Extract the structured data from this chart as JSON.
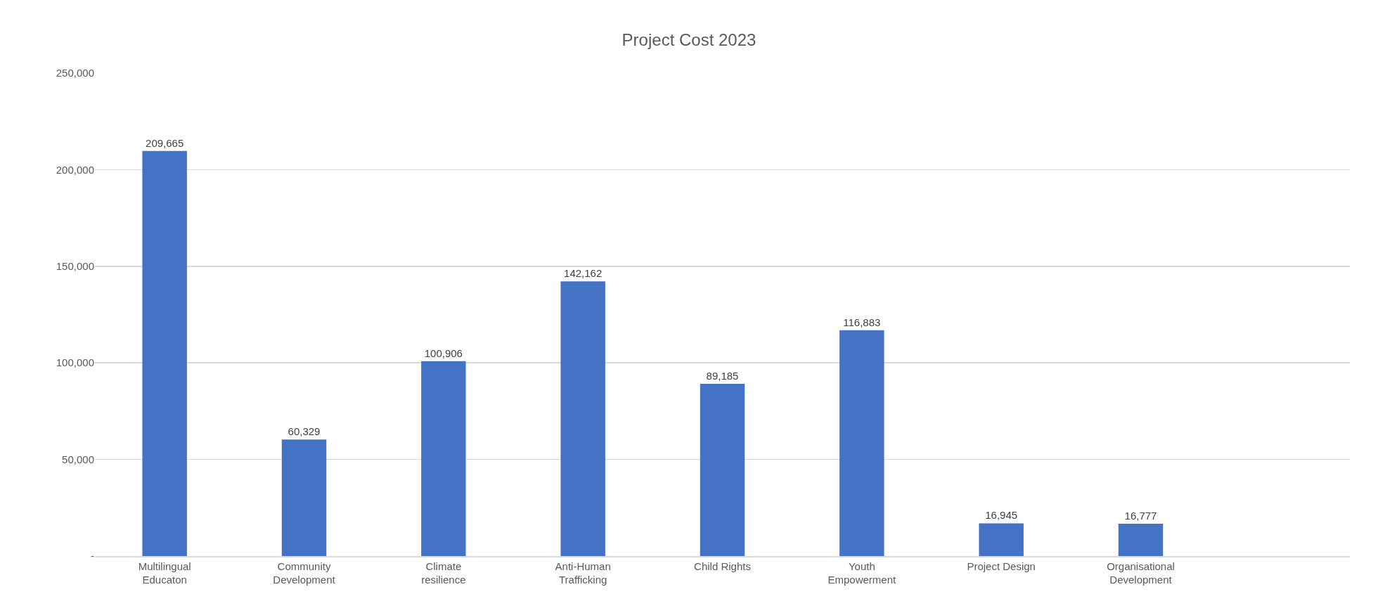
{
  "chart_data": {
    "type": "bar",
    "title": "Project Cost 2023",
    "categories": [
      "Multilingual Educaton",
      "Community Development",
      "Climate resilience",
      "Anti-Human Trafficking",
      "Child Rights",
      "Youth Empowerment",
      "Project Design",
      "Organisational Development",
      null
    ],
    "values": [
      209665,
      60329,
      100906,
      142162,
      89185,
      116883,
      16945,
      16777,
      null
    ],
    "value_labels": [
      "209,665",
      "60,329",
      "100,906",
      "142,162",
      "89,185",
      "116,883",
      "16,945",
      "16,777",
      null
    ],
    "color": "#4472c4",
    "ylim": [
      0,
      250000
    ],
    "yticks": [
      {
        "value": 0,
        "label": "-"
      },
      {
        "value": 50000,
        "label": "50,000"
      },
      {
        "value": 100000,
        "label": "100,000"
      },
      {
        "value": 150000,
        "label": "150,000"
      },
      {
        "value": 200000,
        "label": "200,000"
      },
      {
        "value": 250000,
        "label": "250,000"
      }
    ],
    "grid": "y"
  }
}
